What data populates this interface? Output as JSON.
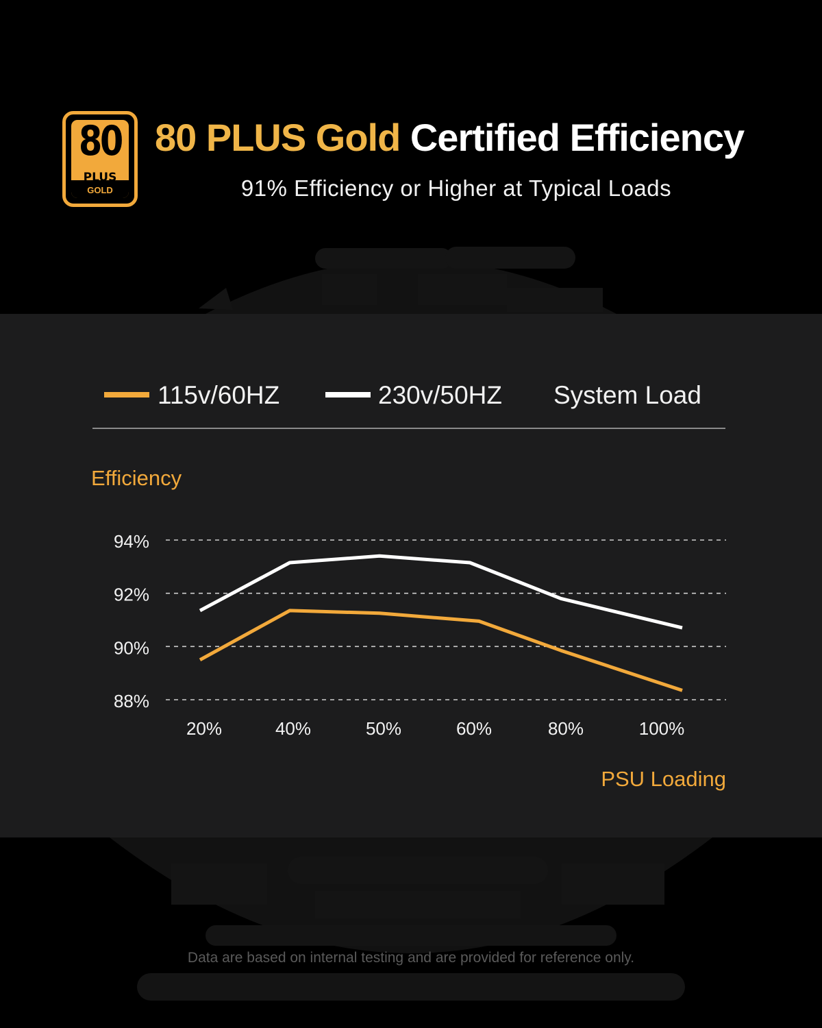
{
  "header": {
    "badge": {
      "number": "80",
      "plus": "PLUS",
      "tier": "GOLD"
    },
    "title_highlight": "80 PLUS Gold",
    "title_rest": "Certified Efficiency",
    "subtitle": "91% Efficiency or Higher at Typical Loads"
  },
  "legend": {
    "series_1": "115v/60HZ",
    "series_2": "230v/50HZ",
    "label": "System Load"
  },
  "colors": {
    "accent": "#f2a93b",
    "series_1": "#f2a93b",
    "series_2": "#ffffff",
    "panel": "#1c1c1d"
  },
  "chart_data": {
    "type": "line",
    "ylabel": "Efficiency",
    "xlabel": "PSU Loading",
    "ylim": [
      88,
      94
    ],
    "yticks": [
      "94%",
      "92%",
      "90%",
      "88%"
    ],
    "ytick_values": [
      94,
      92,
      90,
      88
    ],
    "categories": [
      "20%",
      "40%",
      "50%",
      "60%",
      "80%",
      "100%"
    ],
    "grid": "horizontal-dashed",
    "series": [
      {
        "name": "115v/60HZ",
        "points": [
          [
            20,
            89.5
          ],
          [
            40,
            91.35
          ],
          [
            50,
            91.25
          ],
          [
            62,
            90.95
          ],
          [
            80,
            89.85
          ],
          [
            100,
            88.35
          ]
        ]
      },
      {
        "name": "230v/50HZ",
        "points": [
          [
            20,
            91.35
          ],
          [
            40,
            93.15
          ],
          [
            50,
            93.4
          ],
          [
            60,
            93.15
          ],
          [
            80,
            91.8
          ],
          [
            100,
            90.7
          ]
        ]
      }
    ]
  },
  "footnote": "Data are based on internal testing and are provided for reference only."
}
